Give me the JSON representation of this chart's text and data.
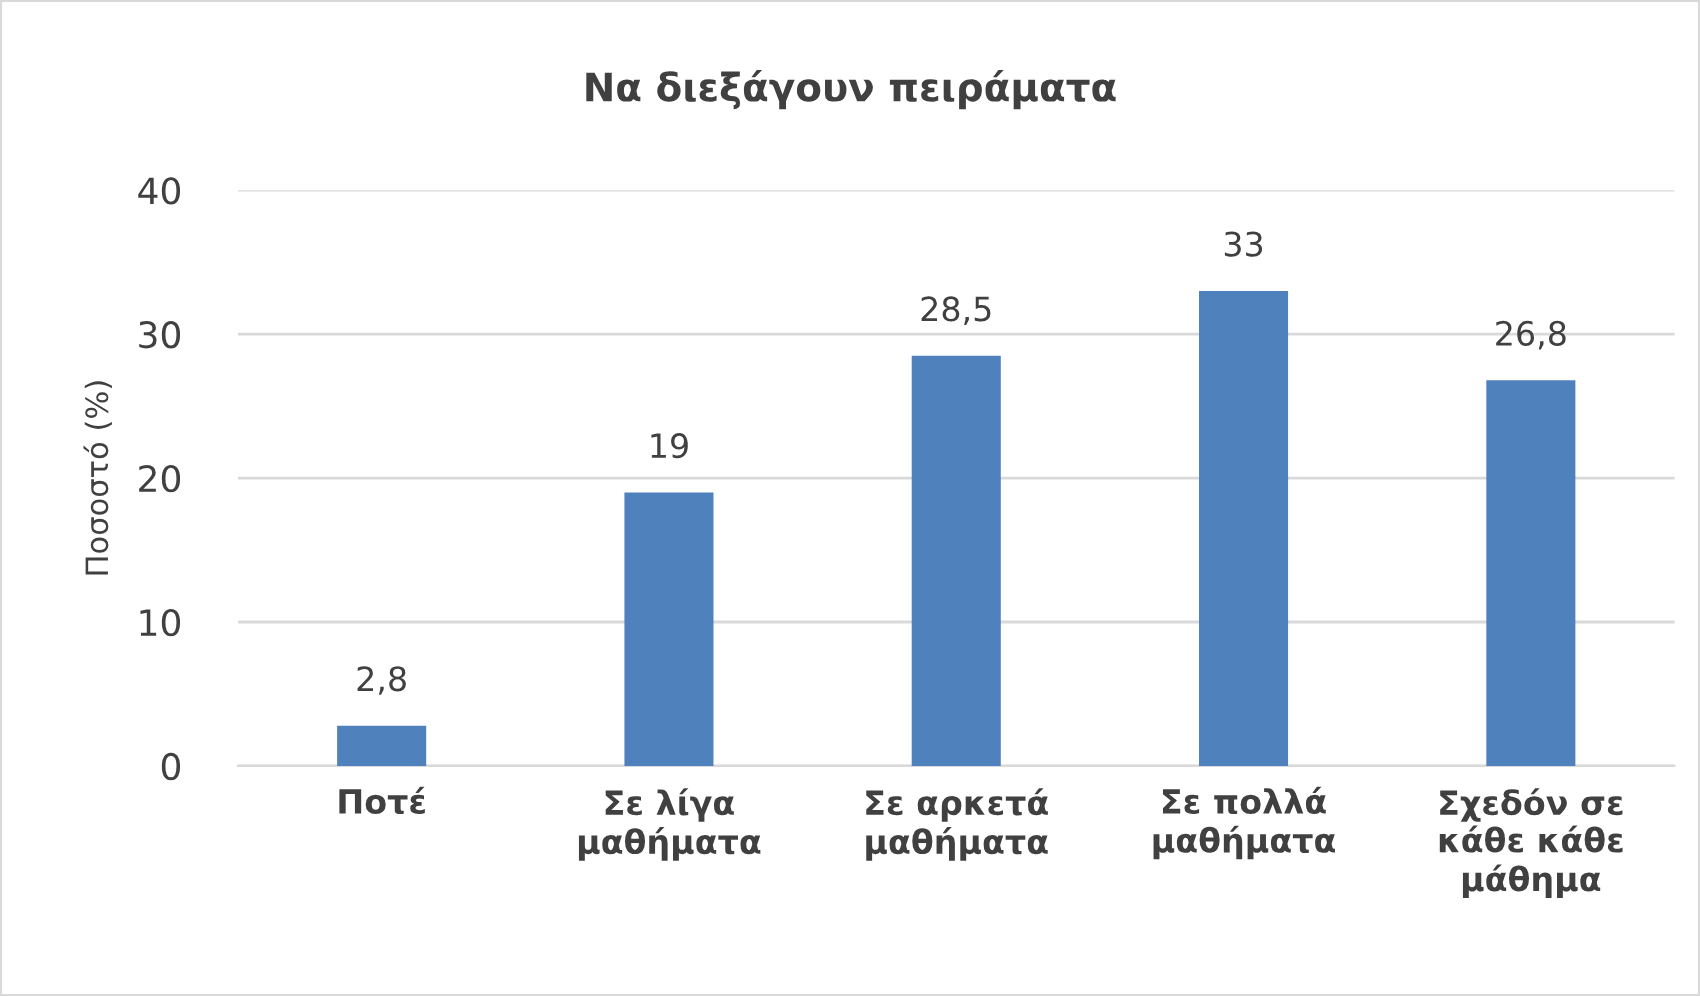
{
  "chart_data": {
    "type": "bar",
    "title": "Να διεξάγουν πειράματα",
    "ylabel": "Ποσοστό (%)",
    "categories": [
      "Ποτέ",
      "Σε λίγα\nμαθήματα",
      "Σε αρκετά\nμαθήματα",
      "Σε πολλά\nμαθήματα",
      "Σχεδόν σε\nκάθε κάθε\nμάθημα"
    ],
    "values": [
      2.8,
      19,
      28.5,
      33,
      26.8
    ],
    "value_labels": [
      "2,8",
      "19",
      "28,5",
      "33",
      "26,8"
    ],
    "color": "#4f81bd",
    "ylim": [
      0,
      40
    ],
    "yticks": [
      0,
      10,
      20,
      30,
      40
    ],
    "grid": "y"
  }
}
